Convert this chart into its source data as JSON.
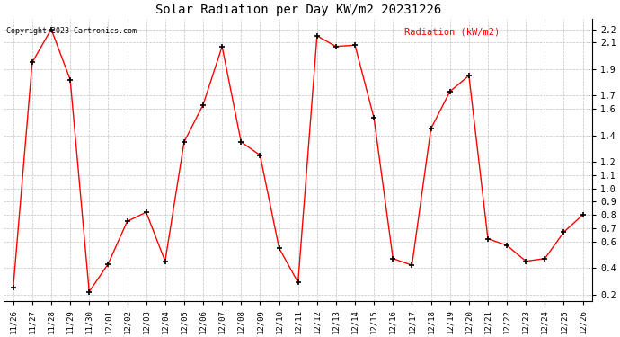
{
  "title": "Solar Radiation per Day KW/m2 20231226",
  "legend_label": "Radiation (kW/m2)",
  "copyright_text": "Copyright 2023 Cartronics.com",
  "dates": [
    "11/26",
    "11/27",
    "11/28",
    "11/29",
    "11/30",
    "12/01",
    "12/02",
    "12/03",
    "12/04",
    "12/05",
    "12/06",
    "12/07",
    "12/08",
    "12/09",
    "12/10",
    "12/11",
    "12/12",
    "12/13",
    "12/14",
    "12/15",
    "12/16",
    "12/17",
    "12/18",
    "12/19",
    "12/20",
    "12/21",
    "12/22",
    "12/23",
    "12/24",
    "12/25",
    "12/26"
  ],
  "values": [
    0.25,
    1.95,
    2.2,
    1.82,
    0.22,
    0.43,
    0.75,
    0.82,
    0.45,
    1.35,
    1.63,
    2.07,
    1.35,
    1.25,
    0.55,
    0.29,
    2.15,
    2.07,
    2.08,
    1.53,
    0.47,
    0.42,
    1.45,
    1.73,
    1.85,
    0.62,
    0.57,
    0.45,
    0.47,
    0.67,
    0.8
  ],
  "line_color": "#ff0000",
  "marker_color": "#000000",
  "bg_color": "#ffffff",
  "grid_color": "#bbbbbb",
  "title_color": "#000000",
  "legend_color": "#ff0000",
  "copyright_color": "#000000",
  "ylim": [
    0.15,
    2.28
  ],
  "ytick_positions": [
    0.2,
    0.4,
    0.6,
    0.7,
    0.8,
    0.9,
    1.0,
    1.1,
    1.2,
    1.4,
    1.6,
    1.7,
    1.9,
    2.1,
    2.2
  ],
  "ytick_labels": [
    "0.2",
    "0.4",
    "0.6",
    "0.7",
    "0.8",
    "0.9",
    "1.0",
    "1.1",
    "1.2",
    "1.4",
    "1.6",
    "1.7",
    "1.9",
    "2.1",
    "2.2"
  ]
}
